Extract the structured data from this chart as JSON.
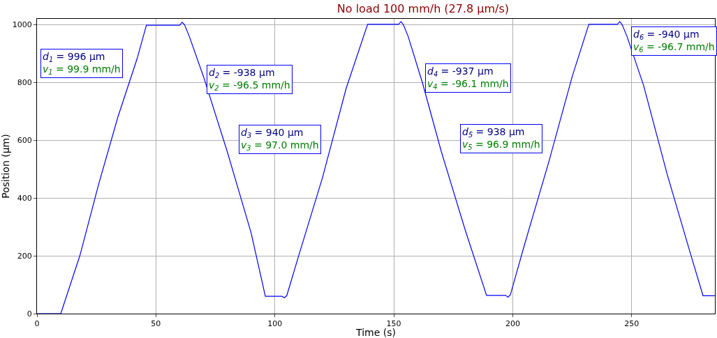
{
  "chart_data": {
    "type": "line",
    "title": "No load 100 mm/h (27.8 µm/s)",
    "xlabel": "Time (s)",
    "ylabel": "Position (µm)",
    "x": [
      0,
      10,
      18,
      26,
      34,
      42,
      46,
      60,
      61,
      62,
      64,
      70,
      80,
      90,
      96,
      103,
      104,
      105,
      110,
      120,
      130,
      139,
      152,
      153,
      154,
      156,
      162,
      170,
      180,
      189,
      197,
      198,
      199,
      205,
      215,
      225,
      232,
      244,
      245,
      246,
      248,
      255,
      265,
      275,
      280,
      285
    ],
    "series": [
      {
        "color": "#0000ff",
        "values": [
          0,
          0,
          200,
          450,
          680,
          880,
          998,
          998,
          1008,
          1000,
          960,
          820,
          560,
          280,
          60,
          60,
          55,
          62,
          200,
          470,
          780,
          1001,
          1001,
          1010,
          1000,
          960,
          800,
          560,
          290,
          63,
          63,
          57,
          65,
          240,
          520,
          820,
          1001,
          1001,
          1010,
          1000,
          960,
          790,
          480,
          200,
          62,
          62
        ]
      }
    ],
    "xlim": [
      0,
      285
    ],
    "ylim": [
      0,
      1020
    ],
    "xticks": [
      0,
      50,
      100,
      150,
      200,
      250
    ],
    "yticks": [
      0,
      200,
      400,
      600,
      800,
      1000
    ],
    "grid": true,
    "annotations": [
      "d$_{1}$ = 996 µm\nv$_{1}$ = 99.9 mm/h",
      "d$_{2}$ = -938 µm\nv$_{2}$ = -96.5 mm/h",
      "d$_{3}$ = 940 µm\nv$_{3}$ = 97.0 mm/h",
      "d$_{4}$ = -937 µm\nv$_{4}$ = -96.1 mm/h",
      "d$_{5}$ = 938 µm\nv$_{5}$ = 96.9 mm/h",
      "d$_{6}$ = -940 µm\nv$_{6}$ = -96.7 mm/h"
    ]
  }
}
